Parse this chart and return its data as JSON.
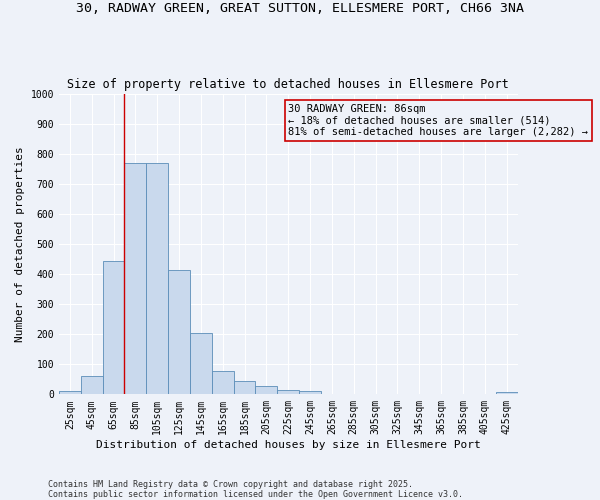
{
  "title_line1": "30, RADWAY GREEN, GREAT SUTTON, ELLESMERE PORT, CH66 3NA",
  "title_line2": "Size of property relative to detached houses in Ellesmere Port",
  "xlabel": "Distribution of detached houses by size in Ellesmere Port",
  "ylabel": "Number of detached properties",
  "bin_labels": [
    "25sqm",
    "45sqm",
    "65sqm",
    "85sqm",
    "105sqm",
    "125sqm",
    "145sqm",
    "165sqm",
    "185sqm",
    "205sqm",
    "225sqm",
    "245sqm",
    "265sqm",
    "285sqm",
    "305sqm",
    "325sqm",
    "345sqm",
    "365sqm",
    "385sqm",
    "405sqm",
    "425sqm"
  ],
  "bar_heights": [
    10,
    62,
    443,
    769,
    769,
    415,
    205,
    77,
    45,
    27,
    14,
    11,
    0,
    0,
    0,
    0,
    0,
    0,
    0,
    0,
    8
  ],
  "bar_color": "#c9d9ed",
  "bar_edge_color": "#5b8db8",
  "vline_color": "#cc0000",
  "annotation_text_line1": "30 RADWAY GREEN: 86sqm",
  "annotation_text_line2": "← 18% of detached houses are smaller (514)",
  "annotation_text_line3": "81% of semi-detached houses are larger (2,282) →",
  "ylim": [
    0,
    1000
  ],
  "yticks": [
    0,
    100,
    200,
    300,
    400,
    500,
    600,
    700,
    800,
    900,
    1000
  ],
  "footnote_line1": "Contains HM Land Registry data © Crown copyright and database right 2025.",
  "footnote_line2": "Contains public sector information licensed under the Open Government Licence v3.0.",
  "bg_color": "#eef2f9",
  "grid_color": "#ffffff",
  "title_fontsize": 9.5,
  "subtitle_fontsize": 8.5,
  "axis_label_fontsize": 8,
  "tick_fontsize": 7,
  "annotation_fontsize": 7.5,
  "footnote_fontsize": 6
}
